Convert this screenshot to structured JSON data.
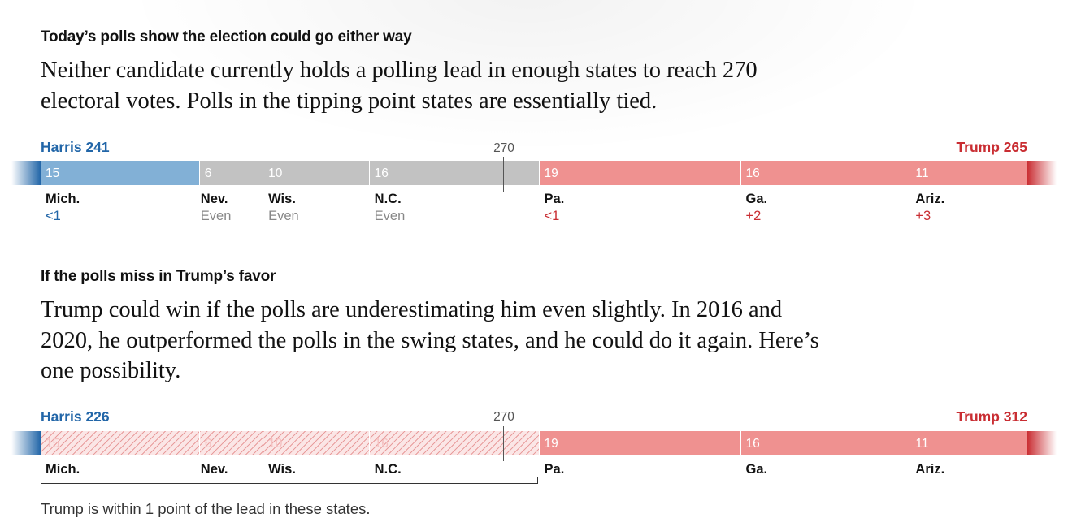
{
  "scenario1": {
    "kicker": "Today’s polls show the election could go either way",
    "dek": "Neither candidate currently holds a polling lead in enough states to reach 270 electoral votes. Polls in the tipping point states are essentially tied.",
    "harris_label": "Harris 241",
    "trump_label": "Trump 265",
    "threshold_label": "270"
  },
  "scenario2": {
    "kicker": "If the polls miss in Trump’s favor",
    "dek": "Trump could win if the polls are underestimating him even slightly. In 2016 and 2020, he outperformed the polls in the swing states, and he could do it again. Here’s one possibility.",
    "harris_label": "Harris 226",
    "trump_label": "Trump 312",
    "threshold_label": "270",
    "bracket_note": "Trump is within 1 point of the lead in these states."
  },
  "colors": {
    "harris": "#2266a8",
    "trump": "#c92d32",
    "dem_bar": "#82b0d6",
    "rep_bar": "#ef9190",
    "tie_bar": "#c2c2c2"
  },
  "chart_data": [
    {
      "type": "bar",
      "title": "Today’s polls show the election could go either way",
      "orientation": "stacked-horizontal",
      "total_scale_electoral_votes": 538,
      "threshold": 270,
      "candidates": [
        {
          "name": "Harris",
          "total": 241
        },
        {
          "name": "Trump",
          "total": 265
        }
      ],
      "categories": [
        "Mich.",
        "Nev.",
        "Wis.",
        "N.C.",
        "Pa.",
        "Ga.",
        "Ariz."
      ],
      "electoral_votes": [
        15,
        6,
        10,
        16,
        19,
        16,
        11
      ],
      "poll_margins": [
        "<1",
        "Even",
        "Even",
        "Even",
        "<1",
        "+2",
        "+3"
      ],
      "leaning": [
        "dem",
        "tie",
        "tie",
        "tie",
        "rep",
        "rep",
        "rep"
      ]
    },
    {
      "type": "bar",
      "title": "If the polls miss in Trump’s favor",
      "orientation": "stacked-horizontal",
      "total_scale_electoral_votes": 538,
      "threshold": 270,
      "candidates": [
        {
          "name": "Harris",
          "total": 226
        },
        {
          "name": "Trump",
          "total": 312
        }
      ],
      "categories": [
        "Mich.",
        "Nev.",
        "Wis.",
        "N.C.",
        "Pa.",
        "Ga.",
        "Ariz."
      ],
      "electoral_votes": [
        15,
        6,
        10,
        16,
        19,
        16,
        11
      ],
      "leaning": [
        "rep-shift",
        "rep-shift",
        "rep-shift",
        "rep-shift",
        "rep",
        "rep",
        "rep"
      ],
      "annotation": "Trump is within 1 point of the lead in these states."
    }
  ]
}
